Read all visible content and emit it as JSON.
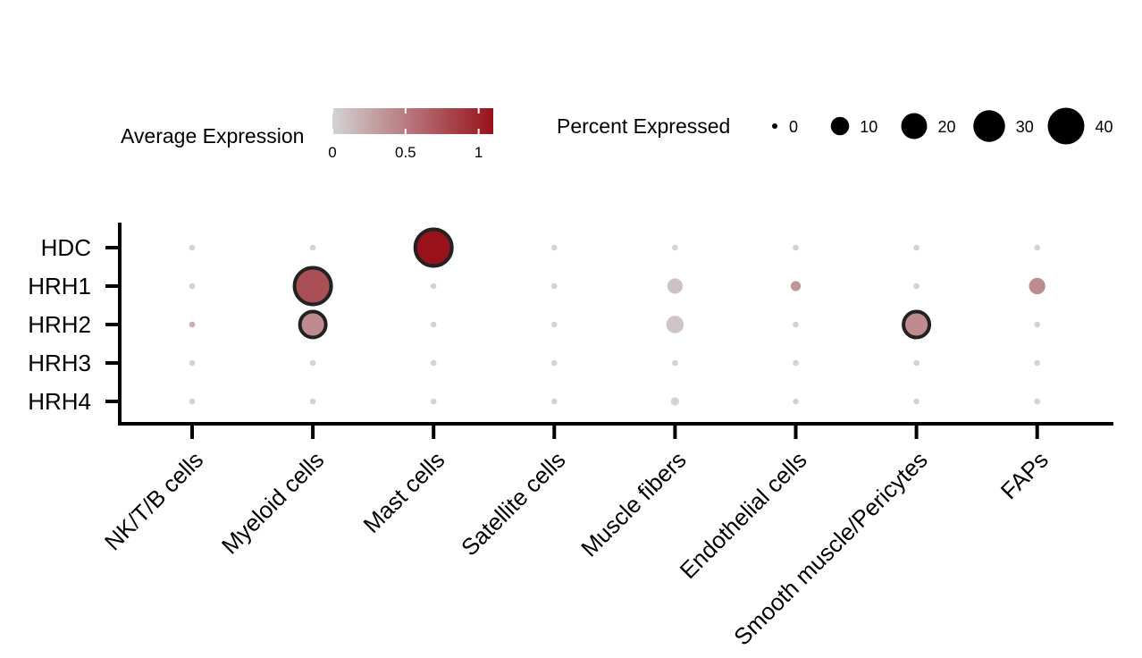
{
  "chart_data": {
    "type": "dot",
    "genes": [
      "HDC",
      "HRH1",
      "HRH2",
      "HRH3",
      "HRH4"
    ],
    "cell_types": [
      "NK/T/B cells",
      "Myeloid cells",
      "Mast cells",
      "Satellite cells",
      "Muscle fibers",
      "Endothelial cells",
      "Smooth muscle/Pericytes",
      "FAPs"
    ],
    "points": [
      {
        "gene": "HDC",
        "cell": "NK/T/B cells",
        "avg_expr": 0,
        "pct_expr": 0
      },
      {
        "gene": "HDC",
        "cell": "Myeloid cells",
        "avg_expr": 0,
        "pct_expr": 0
      },
      {
        "gene": "HDC",
        "cell": "Mast cells",
        "avg_expr": 1.1,
        "pct_expr": 40
      },
      {
        "gene": "HDC",
        "cell": "Satellite cells",
        "avg_expr": 0,
        "pct_expr": 0
      },
      {
        "gene": "HDC",
        "cell": "Muscle fibers",
        "avg_expr": 0,
        "pct_expr": 0
      },
      {
        "gene": "HDC",
        "cell": "Endothelial cells",
        "avg_expr": 0,
        "pct_expr": 0
      },
      {
        "gene": "HDC",
        "cell": "Smooth muscle/Pericytes",
        "avg_expr": 0,
        "pct_expr": 0
      },
      {
        "gene": "HDC",
        "cell": "FAPs",
        "avg_expr": 0,
        "pct_expr": 0
      },
      {
        "gene": "HRH1",
        "cell": "NK/T/B cells",
        "avg_expr": 0,
        "pct_expr": 0
      },
      {
        "gene": "HRH1",
        "cell": "Myeloid cells",
        "avg_expr": 0.75,
        "pct_expr": 40
      },
      {
        "gene": "HRH1",
        "cell": "Mast cells",
        "avg_expr": 0,
        "pct_expr": 0
      },
      {
        "gene": "HRH1",
        "cell": "Satellite cells",
        "avg_expr": 0,
        "pct_expr": 0
      },
      {
        "gene": "HRH1",
        "cell": "Muscle fibers",
        "avg_expr": 0.1,
        "pct_expr": 7
      },
      {
        "gene": "HRH1",
        "cell": "Endothelial cells",
        "avg_expr": 0.35,
        "pct_expr": 3
      },
      {
        "gene": "HRH1",
        "cell": "Smooth muscle/Pericytes",
        "avg_expr": 0,
        "pct_expr": 0
      },
      {
        "gene": "HRH1",
        "cell": "FAPs",
        "avg_expr": 0.4,
        "pct_expr": 8
      },
      {
        "gene": "HRH2",
        "cell": "NK/T/B cells",
        "avg_expr": 0.2,
        "pct_expr": 1
      },
      {
        "gene": "HRH2",
        "cell": "Myeloid cells",
        "avg_expr": 0.4,
        "pct_expr": 20
      },
      {
        "gene": "HRH2",
        "cell": "Mast cells",
        "avg_expr": 0,
        "pct_expr": 0
      },
      {
        "gene": "HRH2",
        "cell": "Satellite cells",
        "avg_expr": 0,
        "pct_expr": 0
      },
      {
        "gene": "HRH2",
        "cell": "Muscle fibers",
        "avg_expr": 0.08,
        "pct_expr": 9
      },
      {
        "gene": "HRH2",
        "cell": "Endothelial cells",
        "avg_expr": 0,
        "pct_expr": 0
      },
      {
        "gene": "HRH2",
        "cell": "Smooth muscle/Pericytes",
        "avg_expr": 0.4,
        "pct_expr": 20
      },
      {
        "gene": "HRH2",
        "cell": "FAPs",
        "avg_expr": 0,
        "pct_expr": 0
      },
      {
        "gene": "HRH3",
        "cell": "NK/T/B cells",
        "avg_expr": 0,
        "pct_expr": 0
      },
      {
        "gene": "HRH3",
        "cell": "Myeloid cells",
        "avg_expr": 0,
        "pct_expr": 0
      },
      {
        "gene": "HRH3",
        "cell": "Mast cells",
        "avg_expr": 0,
        "pct_expr": 0
      },
      {
        "gene": "HRH3",
        "cell": "Satellite cells",
        "avg_expr": 0,
        "pct_expr": 0
      },
      {
        "gene": "HRH3",
        "cell": "Muscle fibers",
        "avg_expr": 0,
        "pct_expr": 0
      },
      {
        "gene": "HRH3",
        "cell": "Endothelial cells",
        "avg_expr": 0,
        "pct_expr": 0
      },
      {
        "gene": "HRH3",
        "cell": "Smooth muscle/Pericytes",
        "avg_expr": 0,
        "pct_expr": 0
      },
      {
        "gene": "HRH3",
        "cell": "FAPs",
        "avg_expr": 0,
        "pct_expr": 0
      },
      {
        "gene": "HRH4",
        "cell": "NK/T/B cells",
        "avg_expr": 0,
        "pct_expr": 0
      },
      {
        "gene": "HRH4",
        "cell": "Myeloid cells",
        "avg_expr": 0,
        "pct_expr": 0
      },
      {
        "gene": "HRH4",
        "cell": "Mast cells",
        "avg_expr": 0,
        "pct_expr": 0
      },
      {
        "gene": "HRH4",
        "cell": "Satellite cells",
        "avg_expr": 0,
        "pct_expr": 0
      },
      {
        "gene": "HRH4",
        "cell": "Muscle fibers",
        "avg_expr": 0,
        "pct_expr": 2
      },
      {
        "gene": "HRH4",
        "cell": "Endothelial cells",
        "avg_expr": 0,
        "pct_expr": 0
      },
      {
        "gene": "HRH4",
        "cell": "Smooth muscle/Pericytes",
        "avg_expr": 0,
        "pct_expr": 0
      },
      {
        "gene": "HRH4",
        "cell": "FAPs",
        "avg_expr": 0,
        "pct_expr": 0
      }
    ],
    "highlighted": [
      {
        "gene": "HDC",
        "cell": "Mast cells"
      },
      {
        "gene": "HRH1",
        "cell": "Myeloid cells"
      },
      {
        "gene": "HRH2",
        "cell": "Myeloid cells"
      },
      {
        "gene": "HRH2",
        "cell": "Smooth muscle/Pericytes"
      }
    ],
    "color_legend": {
      "title": "Average Expression",
      "ticks": [
        0,
        0.5,
        1
      ],
      "tick_labels": [
        "0",
        "0.5",
        "1"
      ],
      "range": [
        0,
        1.1
      ],
      "low_color": "#d3d3d3",
      "high_color": "#98111b"
    },
    "size_legend": {
      "title": "Percent Expressed",
      "values": [
        0,
        10,
        20,
        30,
        40
      ],
      "labels": [
        "0",
        "10",
        "20",
        "30",
        "40"
      ],
      "color": "#000000"
    },
    "outline_color": "#222222",
    "legend_placement": "top",
    "grid": false
  }
}
